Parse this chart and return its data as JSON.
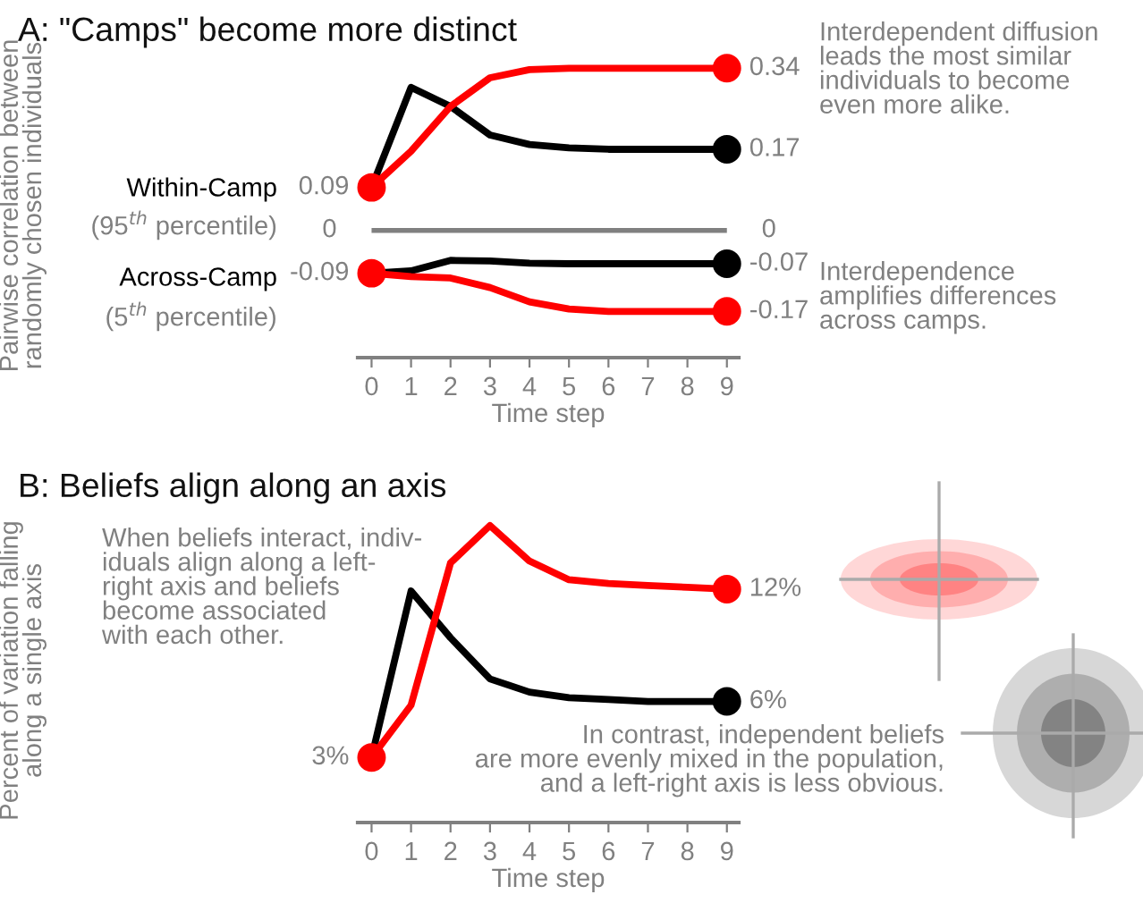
{
  "chart_data": [
    {
      "type": "line",
      "title": "A: \"Camps\" become more distinct",
      "xlabel": "Time step",
      "ylabel": "Pairwise correlation between\nrandomly chosen individuals",
      "x": [
        0,
        1,
        2,
        3,
        4,
        5,
        6,
        7,
        8,
        9
      ],
      "xlim": [
        -0.35,
        9.3
      ],
      "xticks": [
        0,
        1,
        2,
        3,
        4,
        5,
        6,
        7,
        8,
        9
      ],
      "tick_labels": "x",
      "grid": false,
      "series": [
        {
          "color": "#000000",
          "values": [
            0.09,
            0.3,
            0.26,
            0.2,
            0.18,
            0.173,
            0.17,
            0.17,
            0.17,
            0.17
          ],
          "value_labels": [
            null,
            null,
            null,
            null,
            null,
            null,
            null,
            null,
            null,
            "0.17"
          ]
        },
        {
          "color": "#ff0000",
          "values": [
            0.09,
            0.166,
            0.26,
            0.32,
            0.337,
            0.34,
            0.34,
            0.34,
            0.34,
            0.34
          ],
          "value_labels": [
            "0.09",
            null,
            null,
            null,
            null,
            null,
            null,
            null,
            null,
            "0.34"
          ]
        },
        {
          "color": "#000000",
          "values": [
            -0.09,
            -0.085,
            -0.063,
            -0.064,
            -0.069,
            -0.07,
            -0.07,
            -0.07,
            -0.07,
            -0.07
          ],
          "value_labels": [
            null,
            null,
            null,
            null,
            null,
            null,
            null,
            null,
            null,
            "-0.07"
          ]
        },
        {
          "color": "#ff0000",
          "values": [
            -0.09,
            -0.097,
            -0.1,
            -0.12,
            -0.15,
            -0.165,
            -0.17,
            -0.17,
            -0.17,
            -0.17
          ],
          "value_labels": [
            "-0.09",
            null,
            null,
            null,
            null,
            null,
            null,
            null,
            null,
            "-0.17"
          ]
        }
      ],
      "ref_lines": [
        {
          "axis": "y",
          "value": 0,
          "label": "0",
          "color": "#808080"
        }
      ],
      "annotations": [
        "Within-Camp",
        "(95$^{th}$ percentile)",
        "Across-Camp",
        "(5$^{th}$ percentile)",
        "Interdependent diffusion\nleads the most similar\nindividuals to become\neven more alike.",
        "Interdependence\namplifies differences\nacross camps."
      ]
    },
    {
      "type": "line",
      "title": "B: Beliefs align along an axis",
      "xlabel": "Time step",
      "ylabel": "Percent of variation falling\nalong a single axis",
      "x": [
        0,
        1,
        2,
        3,
        4,
        5,
        6,
        7,
        8,
        9
      ],
      "xlim": [
        -0.35,
        9.3
      ],
      "xticks": [
        0,
        1,
        2,
        3,
        4,
        5,
        6,
        7,
        8,
        9
      ],
      "tick_labels": "x",
      "grid": false,
      "series": [
        {
          "color": "#000000",
          "values": [
            3,
            11.9,
            9.4,
            7.2,
            6.5,
            6.2,
            6.1,
            6,
            6,
            6
          ],
          "value_labels": [
            null,
            null,
            null,
            null,
            null,
            null,
            null,
            null,
            null,
            "6%"
          ]
        },
        {
          "color": "#ff0000",
          "values": [
            3,
            5.8,
            13.4,
            15.4,
            13.5,
            12.5,
            12.3,
            12.2,
            12.1,
            12
          ],
          "value_labels": [
            "3%",
            null,
            null,
            null,
            null,
            null,
            null,
            null,
            null,
            "12%"
          ]
        }
      ],
      "annotations": [
        "When beliefs interact, indiv-\niduals align along a left-\nright axis and beliefs\nbecome associated\nwith each other.",
        "In contrast, independent beliefs\nare more evenly mixed in the population,\nand a left-right axis is less obvious."
      ]
    }
  ]
}
